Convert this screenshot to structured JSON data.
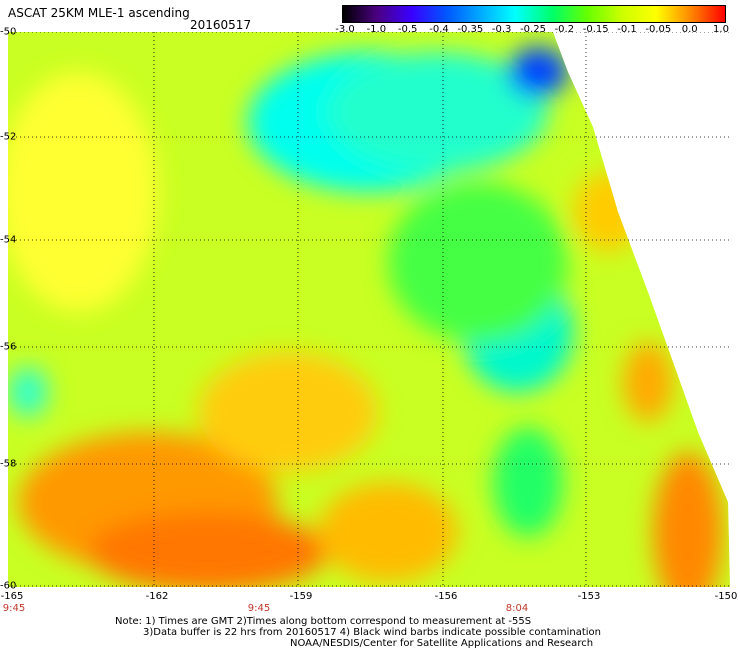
{
  "header": {
    "title": "ASCAT 25KM MLE-1 ascending",
    "date": "20160517"
  },
  "colorbar": {
    "ticks": [
      "-3.0",
      "-1.0",
      "-0.5",
      "-0.4",
      "-0.35",
      "-0.3",
      "-0.25",
      "-0.2",
      "-0.15",
      "-0.1",
      "-0.05",
      "0.0",
      "1.0"
    ],
    "colors": [
      "#000000",
      "#6600cc",
      "#0000ff",
      "#0088ff",
      "#00ccff",
      "#00ffff",
      "#00ff88",
      "#33ff00",
      "#aaff00",
      "#ffff00",
      "#ffbb00",
      "#ff7700",
      "#ff0000"
    ]
  },
  "map": {
    "lat_labels": [
      "-50",
      "-52",
      "-54",
      "-56",
      "-58",
      "-60"
    ],
    "lon_labels": [
      "-165",
      "-162",
      "-159",
      "-156",
      "-153",
      "-150"
    ],
    "time_labels": [
      "9:45",
      "9:45",
      "8:04"
    ]
  },
  "notes": {
    "line1": "Note: 1) Times are GMT 2)Times along bottom correspond to measurement at -55S",
    "line2": "3)Data buffer is 22 hrs from 20160517 4) Black wind barbs indicate possible contamination",
    "line3": "NOAA/NESDIS/Center for Satellite Applications and Research"
  }
}
